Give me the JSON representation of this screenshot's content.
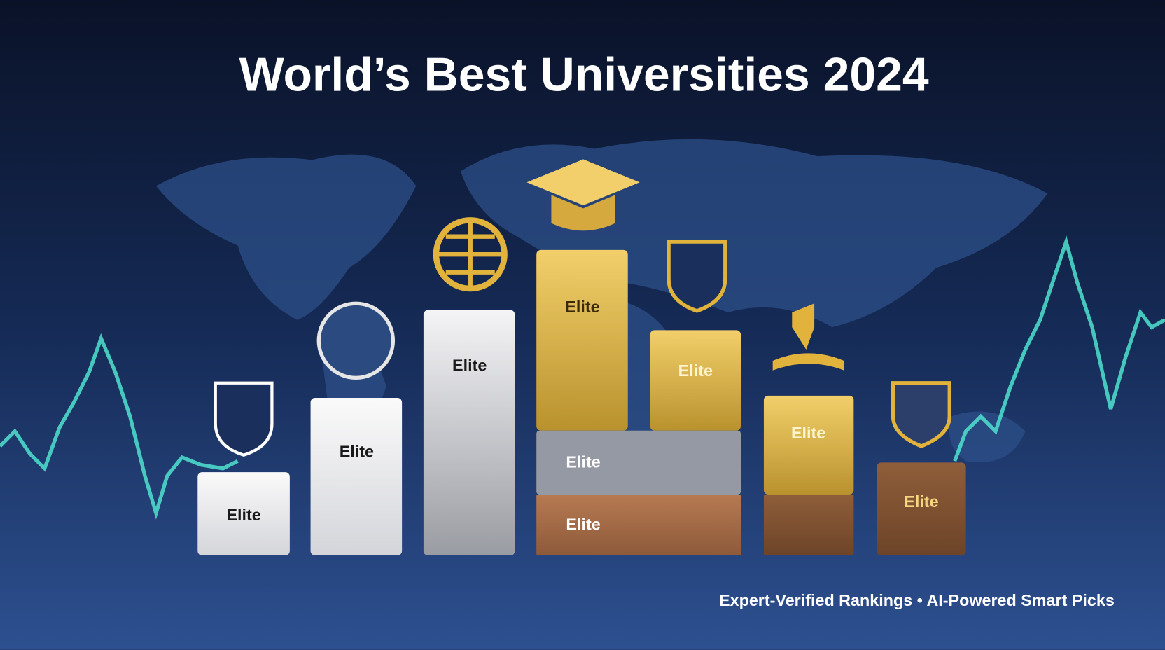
{
  "header": {
    "title": "World’s Best Universities 2024"
  },
  "bars": [
    {
      "label": "Elite"
    },
    {
      "label": "Elite"
    },
    {
      "label": "Elite"
    },
    {
      "label": "Elite"
    },
    {
      "label": "Elite"
    },
    {
      "label": "Elite"
    },
    {
      "label": "Elite"
    },
    {
      "label": "Elite"
    },
    {
      "label": "Elite"
    }
  ],
  "footer": {
    "tagline": "Expert-Verified Rankings • AI-Powered Smart Picks"
  }
}
